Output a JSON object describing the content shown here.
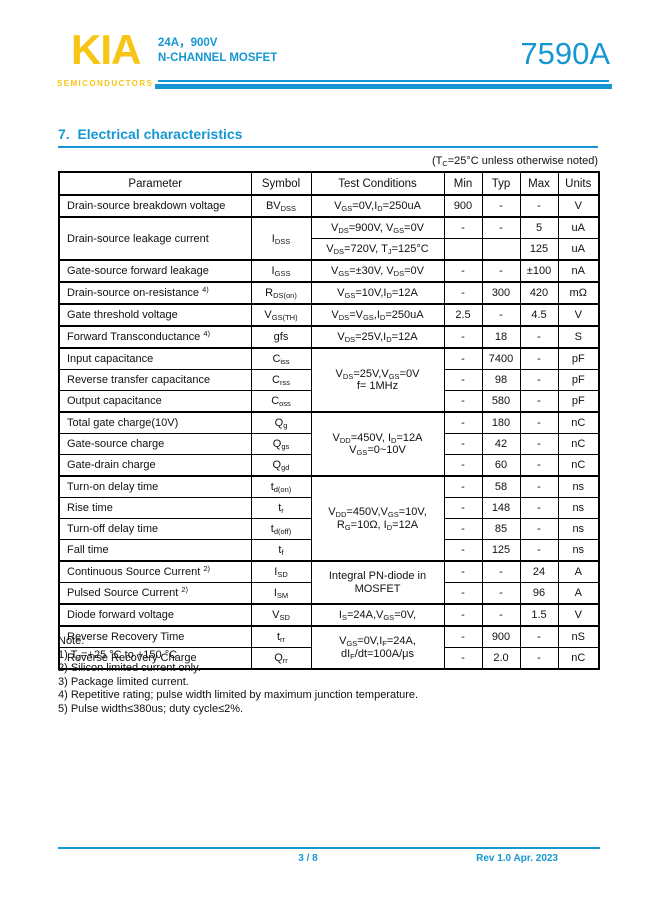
{
  "colors": {
    "accent_cyan": "#1697D3",
    "brand_yellow": "#F6C515"
  },
  "header": {
    "logo_text": "KIA",
    "logo_sub": "SEMICONDUCTORS",
    "subtitle_line1": "24A，900V",
    "subtitle_line2": "N-CHANNEL MOSFET",
    "part_number": "7590A"
  },
  "section": {
    "title": "7.  Electrical characteristics",
    "condition_note": "(T_{C}=25°C unless otherwise noted)"
  },
  "table": {
    "columns": [
      "Parameter",
      "Symbol",
      "Test Conditions",
      "Min",
      "Typ",
      "Max",
      "Units"
    ],
    "rows": [
      {
        "group_start": true,
        "cells": [
          {
            "t": "Drain-source breakdown voltage",
            "c": "param"
          },
          {
            "t": "BV_{DSS}",
            "c": "sym"
          },
          {
            "t": "V_{GS}=0V,I_{D}=250uA",
            "c": "cond"
          },
          {
            "t": "900",
            "c": "val"
          },
          {
            "t": "-",
            "c": "val"
          },
          {
            "t": "-",
            "c": "val"
          },
          {
            "t": "V",
            "c": "val"
          }
        ]
      },
      {
        "group_start": true,
        "cells": [
          {
            "t": "Drain-source leakage current",
            "c": "param",
            "rs": 2
          },
          {
            "t": "I_{DSS}",
            "c": "sym",
            "rs": 2
          },
          {
            "t": "V_{DS}=900V, V_{GS}=0V",
            "c": "cond"
          },
          {
            "t": "-",
            "c": "val"
          },
          {
            "t": "-",
            "c": "val"
          },
          {
            "t": "5",
            "c": "val"
          },
          {
            "t": "uA",
            "c": "val"
          }
        ]
      },
      {
        "group_start": false,
        "cells": [
          {
            "t": "V_{DS}=720V, T_{J}=125°C",
            "c": "cond"
          },
          {
            "t": "",
            "c": "val"
          },
          {
            "t": "",
            "c": "val"
          },
          {
            "t": "125",
            "c": "val"
          },
          {
            "t": "uA",
            "c": "val"
          }
        ]
      },
      {
        "group_start": true,
        "cells": [
          {
            "t": "Gate-source forward leakage",
            "c": "param"
          },
          {
            "t": "I_{GSS}",
            "c": "sym"
          },
          {
            "t": "V_{GS}=±30V, V_{DS}=0V",
            "c": "cond"
          },
          {
            "t": "-",
            "c": "val"
          },
          {
            "t": "-",
            "c": "val"
          },
          {
            "t": "±100",
            "c": "val"
          },
          {
            "t": "nA",
            "c": "val"
          }
        ]
      },
      {
        "group_start": true,
        "cells": [
          {
            "t": "Drain-source on-resistance ^{4)}",
            "c": "param"
          },
          {
            "t": "R_{DS(on)}",
            "c": "sym"
          },
          {
            "t": "V_{GS}=10V,I_{D}=12A",
            "c": "cond"
          },
          {
            "t": "-",
            "c": "val"
          },
          {
            "t": "300",
            "c": "val"
          },
          {
            "t": "420",
            "c": "val"
          },
          {
            "t": "mΩ",
            "c": "val"
          }
        ]
      },
      {
        "group_start": true,
        "cells": [
          {
            "t": "Gate threshold voltage",
            "c": "param"
          },
          {
            "t": "V_{GS(TH)}",
            "c": "sym"
          },
          {
            "t": "V_{DS}=V_{GS},I_{D}=250uA",
            "c": "cond"
          },
          {
            "t": "2.5",
            "c": "val"
          },
          {
            "t": "-",
            "c": "val"
          },
          {
            "t": "4.5",
            "c": "val"
          },
          {
            "t": "V",
            "c": "val"
          }
        ]
      },
      {
        "group_start": true,
        "cells": [
          {
            "t": "Forward Transconductance ^{4)}",
            "c": "param"
          },
          {
            "t": "gfs",
            "c": "sym"
          },
          {
            "t": "V_{DS}=25V,I_{D}=12A",
            "c": "cond"
          },
          {
            "t": "-",
            "c": "val"
          },
          {
            "t": "18",
            "c": "val"
          },
          {
            "t": "-",
            "c": "val"
          },
          {
            "t": "S",
            "c": "val"
          }
        ]
      },
      {
        "group_start": true,
        "cells": [
          {
            "t": "Input capacitance",
            "c": "param"
          },
          {
            "t": "C_{iss}",
            "c": "sym"
          },
          {
            "t": "V_{DS}=25V,V_{GS}=0V\nf= 1MHz",
            "c": "cond",
            "rs": 3
          },
          {
            "t": "-",
            "c": "val"
          },
          {
            "t": "7400",
            "c": "val"
          },
          {
            "t": "-",
            "c": "val"
          },
          {
            "t": "pF",
            "c": "val"
          }
        ]
      },
      {
        "group_start": false,
        "cells": [
          {
            "t": "Reverse transfer capacitance",
            "c": "param"
          },
          {
            "t": "C_{rss}",
            "c": "sym"
          },
          {
            "t": "-",
            "c": "val"
          },
          {
            "t": "98",
            "c": "val"
          },
          {
            "t": "-",
            "c": "val"
          },
          {
            "t": "pF",
            "c": "val"
          }
        ]
      },
      {
        "group_start": false,
        "cells": [
          {
            "t": "Output capacitance",
            "c": "param"
          },
          {
            "t": "C_{oss}",
            "c": "sym"
          },
          {
            "t": "-",
            "c": "val"
          },
          {
            "t": "580",
            "c": "val"
          },
          {
            "t": "-",
            "c": "val"
          },
          {
            "t": "pF",
            "c": "val"
          }
        ]
      },
      {
        "group_start": true,
        "cells": [
          {
            "t": "Total gate charge(10V)",
            "c": "param"
          },
          {
            "t": "Q_{g}",
            "c": "sym"
          },
          {
            "t": "V_{DD}=450V, I_{D}=12A\nV_{GS}=0~10V",
            "c": "cond",
            "rs": 3
          },
          {
            "t": "-",
            "c": "val"
          },
          {
            "t": "180",
            "c": "val"
          },
          {
            "t": "-",
            "c": "val"
          },
          {
            "t": "nC",
            "c": "val"
          }
        ]
      },
      {
        "group_start": false,
        "cells": [
          {
            "t": "Gate-source charge",
            "c": "param"
          },
          {
            "t": "Q_{gs}",
            "c": "sym"
          },
          {
            "t": "-",
            "c": "val"
          },
          {
            "t": "42",
            "c": "val"
          },
          {
            "t": "-",
            "c": "val"
          },
          {
            "t": "nC",
            "c": "val"
          }
        ]
      },
      {
        "group_start": false,
        "cells": [
          {
            "t": "Gate-drain charge",
            "c": "param"
          },
          {
            "t": "Q_{gd}",
            "c": "sym"
          },
          {
            "t": "-",
            "c": "val"
          },
          {
            "t": "60",
            "c": "val"
          },
          {
            "t": "-",
            "c": "val"
          },
          {
            "t": "nC",
            "c": "val"
          }
        ]
      },
      {
        "group_start": true,
        "cells": [
          {
            "t": "Turn-on delay time",
            "c": "param"
          },
          {
            "t": "t_{d(on)}",
            "c": "sym"
          },
          {
            "t": "V_{DD}=450V,V_{GS}=10V,\nR_{G}=10Ω, I_{D}=12A",
            "c": "cond",
            "rs": 4
          },
          {
            "t": "-",
            "c": "val"
          },
          {
            "t": "58",
            "c": "val"
          },
          {
            "t": "-",
            "c": "val"
          },
          {
            "t": "ns",
            "c": "val"
          }
        ]
      },
      {
        "group_start": false,
        "cells": [
          {
            "t": "Rise time",
            "c": "param"
          },
          {
            "t": "t_{r}",
            "c": "sym"
          },
          {
            "t": "-",
            "c": "val"
          },
          {
            "t": "148",
            "c": "val"
          },
          {
            "t": "-",
            "c": "val"
          },
          {
            "t": "ns",
            "c": "val"
          }
        ]
      },
      {
        "group_start": false,
        "cells": [
          {
            "t": "Turn-off delay time",
            "c": "param"
          },
          {
            "t": "t_{d(off)}",
            "c": "sym"
          },
          {
            "t": "-",
            "c": "val"
          },
          {
            "t": "85",
            "c": "val"
          },
          {
            "t": "-",
            "c": "val"
          },
          {
            "t": "ns",
            "c": "val"
          }
        ]
      },
      {
        "group_start": false,
        "cells": [
          {
            "t": "Fall time",
            "c": "param"
          },
          {
            "t": "t_{f}",
            "c": "sym"
          },
          {
            "t": "-",
            "c": "val"
          },
          {
            "t": "125",
            "c": "val"
          },
          {
            "t": "-",
            "c": "val"
          },
          {
            "t": "ns",
            "c": "val"
          }
        ]
      },
      {
        "group_start": true,
        "cells": [
          {
            "t": "Continuous Source Current ^{2)}",
            "c": "param"
          },
          {
            "t": "I_{SD}",
            "c": "sym"
          },
          {
            "t": "Integral PN-diode in\nMOSFET",
            "c": "cond",
            "rs": 2
          },
          {
            "t": "-",
            "c": "val"
          },
          {
            "t": "-",
            "c": "val"
          },
          {
            "t": "24",
            "c": "val"
          },
          {
            "t": "A",
            "c": "val"
          }
        ]
      },
      {
        "group_start": false,
        "cells": [
          {
            "t": "Pulsed Source Current ^{2)}",
            "c": "param"
          },
          {
            "t": "I_{SM}",
            "c": "sym"
          },
          {
            "t": "-",
            "c": "val"
          },
          {
            "t": "-",
            "c": "val"
          },
          {
            "t": "96",
            "c": "val"
          },
          {
            "t": "A",
            "c": "val"
          }
        ]
      },
      {
        "group_start": true,
        "cells": [
          {
            "t": "Diode forward voltage",
            "c": "param"
          },
          {
            "t": "V_{SD}",
            "c": "sym"
          },
          {
            "t": "I_{S}=24A,V_{GS}=0V,",
            "c": "cond"
          },
          {
            "t": "-",
            "c": "val"
          },
          {
            "t": "-",
            "c": "val"
          },
          {
            "t": "1.5",
            "c": "val"
          },
          {
            "t": "V",
            "c": "val"
          }
        ]
      },
      {
        "group_start": true,
        "cells": [
          {
            "t": "Reverse Recovery Time",
            "c": "param"
          },
          {
            "t": "t_{rr}",
            "c": "sym"
          },
          {
            "t": "V_{GS}=0V,I_{F}=24A,\ndI_{F}/dt=100A/μs",
            "c": "cond",
            "rs": 2
          },
          {
            "t": "-",
            "c": "val"
          },
          {
            "t": "900",
            "c": "val"
          },
          {
            "t": "-",
            "c": "val"
          },
          {
            "t": "nS",
            "c": "val"
          }
        ]
      },
      {
        "group_start": false,
        "cells": [
          {
            "t": "Reverse Recovery Charge",
            "c": "param"
          },
          {
            "t": "Q_{rr}",
            "c": "sym"
          },
          {
            "t": "-",
            "c": "val"
          },
          {
            "t": "2.0",
            "c": "val"
          },
          {
            "t": "-",
            "c": "val"
          },
          {
            "t": "nC",
            "c": "val"
          }
        ]
      }
    ]
  },
  "notes": {
    "title": "Note:",
    "items": [
      "1) T_{J}=+25 °C to +150 °C",
      "2) Silicon limited current only.",
      "3) Package limited current.",
      "4) Repetitive rating; pulse width limited by maximum junction temperature.",
      "5) Pulse width≤380us; duty cycle≤2%."
    ]
  },
  "footer": {
    "page_indicator": "3 / 8",
    "revision": "Rev 1.0 Apr. 2023"
  }
}
